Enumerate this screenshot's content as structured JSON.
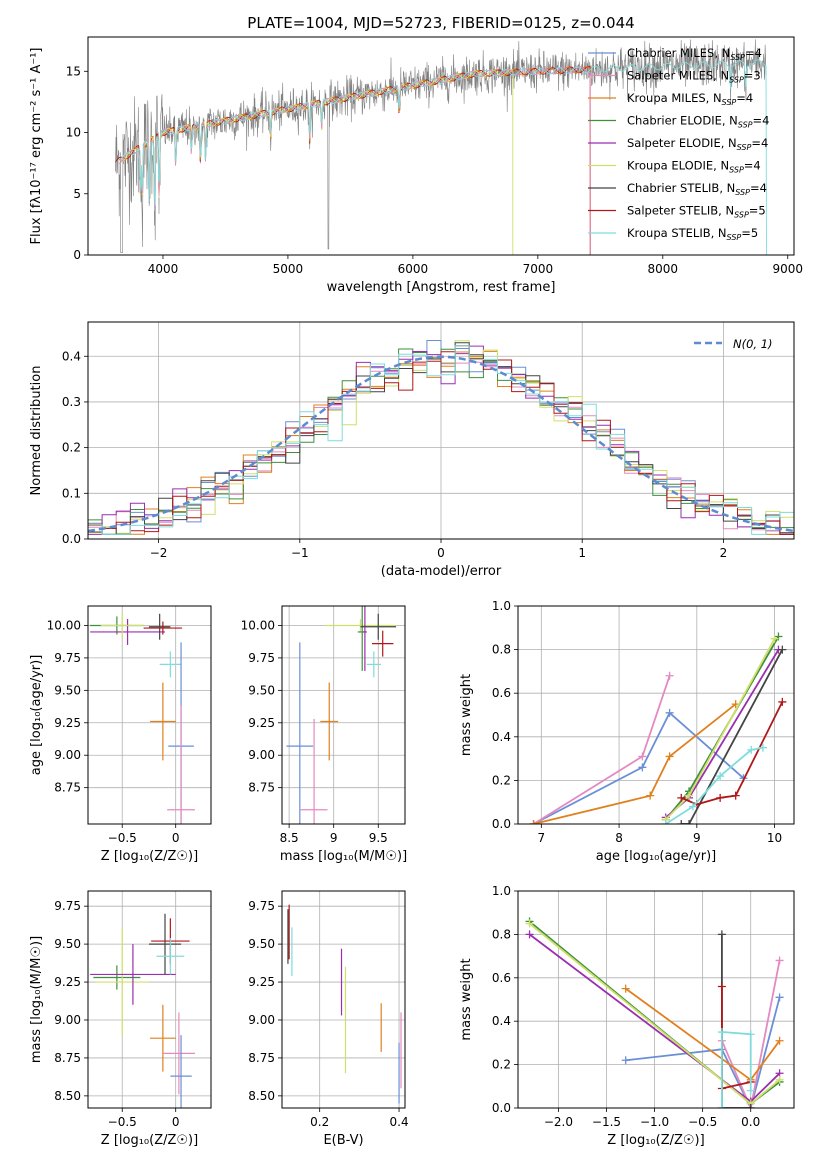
{
  "colors": {
    "Chabrier MILES": "#6a8fd6",
    "Salpeter MILES": "#e58ac0",
    "Kroupa MILES": "#e0801e",
    "Chabrier ELODIE": "#3f8f3f",
    "Salpeter ELODIE": "#9a2fb0",
    "Kroupa ELODIE": "#cfe06a",
    "Chabrier STELIB": "#444444",
    "Salpeter STELIB": "#b01818",
    "Kroupa STELIB": "#7fdcdc"
  },
  "chart_data": [
    {
      "id": "spectrum",
      "type": "line",
      "title": "PLATE=1004, MJD=52723, FIBERID=0125, z=0.044",
      "xlabel": "wavelength [Angstrom, rest frame]",
      "ylabel": "Flux [fλ10⁻¹⁷ erg cm⁻² s⁻¹ A⁻¹]",
      "xlim": [
        3400,
        9050
      ],
      "ylim": [
        0,
        17.8
      ],
      "xticks": [
        4000,
        5000,
        6000,
        7000,
        8000,
        9000
      ],
      "yticks": [
        0,
        5,
        10,
        15
      ],
      "grid": false,
      "legend_position": "top-right",
      "data_color": "#808080",
      "data_range": [
        3620,
        8830
      ],
      "legend": [
        {
          "name": "Chabrier MILES, N",
          "sub": "SSP",
          "val": "=4",
          "color": "#6a8fd6"
        },
        {
          "name": "Salpeter MILES, N",
          "sub": "SSP",
          "val": "=3",
          "color": "#e58ac0"
        },
        {
          "name": "Kroupa MILES, N",
          "sub": "SSP",
          "val": "=4",
          "color": "#e0801e"
        },
        {
          "name": "Chabrier ELODIE, N",
          "sub": "SSP",
          "val": "=4",
          "color": "#3f8f3f"
        },
        {
          "name": "Salpeter ELODIE, N",
          "sub": "SSP",
          "val": "=4",
          "color": "#9a2fb0"
        },
        {
          "name": "Kroupa ELODIE, N",
          "sub": "SSP",
          "val": "=4",
          "color": "#cfe06a"
        },
        {
          "name": "Chabrier STELIB, N",
          "sub": "SSP",
          "val": "=4",
          "color": "#444444"
        },
        {
          "name": "Salpeter STELIB, N",
          "sub": "SSP",
          "val": "=5",
          "color": "#b01818"
        },
        {
          "name": "Kroupa STELIB, N",
          "sub": "SSP",
          "val": "=5",
          "color": "#7fdcdc"
        }
      ],
      "models": [
        {
          "color": "#b01818",
          "range": [
            3620,
            7420
          ]
        },
        {
          "color": "#e0801e",
          "range": [
            3650,
            7420
          ]
        },
        {
          "color": "#cfe06a",
          "range": [
            3680,
            6800
          ]
        },
        {
          "color": "#e58ac0",
          "range": [
            3650,
            7420
          ]
        },
        {
          "color": "#7fdcdc",
          "range": [
            3660,
            8830
          ]
        }
      ]
    },
    {
      "id": "residuals",
      "type": "histogram",
      "xlabel": "(data-model)/error",
      "ylabel": "Normed distribution",
      "xlim": [
        -2.5,
        2.5
      ],
      "ylim": [
        0,
        0.475
      ],
      "xticks": [
        -2,
        -1,
        0,
        1,
        2
      ],
      "yticks": [
        0.0,
        0.1,
        0.2,
        0.3,
        0.4
      ],
      "grid": true,
      "legend_position": "top-right",
      "legend": [
        {
          "name": "N(0, 1)",
          "color": "#5b8bd0",
          "style": "dashed"
        }
      ],
      "bin_width": 0.1,
      "bin_start": -2.5,
      "gaussian": {
        "mean": 0,
        "sigma": 1
      }
    },
    {
      "id": "age-vs-Z",
      "type": "scatter-errorbar",
      "xlabel": "Z [log₁₀(Z/Z☉)]",
      "ylabel": "age  [log₁₀(age/yr)]",
      "xlim": [
        -0.82,
        0.33
      ],
      "ylim": [
        8.47,
        10.15
      ],
      "xticks": [
        -0.5,
        0.0
      ],
      "yticks": [
        8.75,
        9.0,
        9.25,
        9.5,
        9.75,
        10.0
      ],
      "grid": true,
      "points": [
        {
          "x": -0.55,
          "y": 10.0,
          "xerr": 0.25,
          "yerr": 0.07,
          "color": "#3f8f3f"
        },
        {
          "x": -0.45,
          "y": 9.95,
          "xerr": 0.35,
          "yerr": 0.1,
          "color": "#9a2fb0"
        },
        {
          "x": -0.5,
          "y": 10.0,
          "xerr": 0.2,
          "yerr": 0.1,
          "color": "#cfe06a"
        },
        {
          "x": -0.15,
          "y": 9.99,
          "xerr": 0.1,
          "yerr": 0.1,
          "color": "#444444"
        },
        {
          "x": -0.12,
          "y": 9.98,
          "xerr": 0.18,
          "yerr": 0.05,
          "color": "#b01818"
        },
        {
          "x": -0.05,
          "y": 9.7,
          "xerr": 0.1,
          "yerr": 0.1,
          "color": "#7fdcdc"
        },
        {
          "x": -0.12,
          "y": 9.26,
          "xerr": 0.12,
          "yerr": 0.3,
          "color": "#e0801e"
        },
        {
          "x": 0.05,
          "y": 9.07,
          "xerr": 0.12,
          "yerr": 0.8,
          "color": "#6a8fd6"
        },
        {
          "x": 0.05,
          "y": 8.58,
          "xerr": 0.13,
          "yerr": 0.8,
          "color": "#e58ac0"
        }
      ]
    },
    {
      "id": "age-vs-mass",
      "type": "scatter-errorbar",
      "xlabel": "mass [log₁₀(M/M☉)]",
      "ylabel": "",
      "xlim": [
        8.42,
        9.8
      ],
      "ylim": [
        8.47,
        10.15
      ],
      "xticks": [
        8.5,
        9.0,
        9.5
      ],
      "yticks": [
        8.75,
        9.0,
        9.25,
        9.5,
        9.75,
        10.0
      ],
      "grid": true,
      "points": [
        {
          "x": 9.3,
          "y": 10.0,
          "xerr": 0.4,
          "yerr": 0.05,
          "color": "#cfe06a"
        },
        {
          "x": 9.32,
          "y": 9.95,
          "xerr": 0.05,
          "yerr": 0.3,
          "color": "#3f8f3f"
        },
        {
          "x": 9.35,
          "y": 9.95,
          "xerr": 0.02,
          "yerr": 0.3,
          "color": "#9a2fb0"
        },
        {
          "x": 9.5,
          "y": 9.99,
          "xerr": 0.2,
          "yerr": 0.1,
          "color": "#444444"
        },
        {
          "x": 9.55,
          "y": 9.86,
          "xerr": 0.12,
          "yerr": 0.1,
          "color": "#b01818"
        },
        {
          "x": 9.45,
          "y": 9.7,
          "xerr": 0.08,
          "yerr": 0.1,
          "color": "#7fdcdc"
        },
        {
          "x": 8.95,
          "y": 9.26,
          "xerr": 0.1,
          "yerr": 0.3,
          "color": "#e0801e"
        },
        {
          "x": 8.62,
          "y": 9.07,
          "xerr": 0.15,
          "yerr": 0.8,
          "color": "#6a8fd6"
        },
        {
          "x": 8.78,
          "y": 8.58,
          "xerr": 0.15,
          "yerr": 0.7,
          "color": "#e58ac0"
        }
      ]
    },
    {
      "id": "mass-weight-vs-age",
      "type": "line",
      "xlabel": "age  [log₁₀(age/yr)]",
      "ylabel": "mass weight",
      "xlim": [
        6.7,
        10.25
      ],
      "ylim": [
        0,
        1.0
      ],
      "xticks": [
        7,
        8,
        9,
        10
      ],
      "yticks": [
        0.0,
        0.2,
        0.4,
        0.6,
        0.8,
        1.0
      ],
      "grid": true,
      "series": [
        {
          "color": "#6a8fd6",
          "points": [
            [
              6.9,
              0.0
            ],
            [
              8.3,
              0.26
            ],
            [
              8.65,
              0.51
            ],
            [
              9.6,
              0.21
            ]
          ]
        },
        {
          "color": "#e58ac0",
          "points": [
            [
              6.9,
              0.0
            ],
            [
              8.3,
              0.31
            ],
            [
              8.65,
              0.68
            ]
          ]
        },
        {
          "color": "#e0801e",
          "points": [
            [
              6.9,
              0.0
            ],
            [
              8.4,
              0.13
            ],
            [
              8.65,
              0.31
            ],
            [
              9.5,
              0.55
            ]
          ]
        },
        {
          "color": "#3f8f3f",
          "points": [
            [
              8.6,
              0.02
            ],
            [
              8.9,
              0.15
            ],
            [
              10.05,
              0.86
            ]
          ]
        },
        {
          "color": "#9a2fb0",
          "points": [
            [
              8.6,
              0.03
            ],
            [
              8.9,
              0.12
            ],
            [
              10.05,
              0.8
            ]
          ]
        },
        {
          "color": "#cfe06a",
          "points": [
            [
              8.6,
              0.02
            ],
            [
              8.9,
              0.13
            ],
            [
              10.0,
              0.85
            ]
          ]
        },
        {
          "color": "#444444",
          "points": [
            [
              8.8,
              0.0
            ],
            [
              8.9,
              0.0
            ],
            [
              10.1,
              0.8
            ]
          ]
        },
        {
          "color": "#b01818",
          "points": [
            [
              8.8,
              0.12
            ],
            [
              9.0,
              0.09
            ],
            [
              9.3,
              0.12
            ],
            [
              9.5,
              0.13
            ],
            [
              10.1,
              0.56
            ]
          ]
        },
        {
          "color": "#7fdcdc",
          "points": [
            [
              8.6,
              0.0
            ],
            [
              8.95,
              0.08
            ],
            [
              9.3,
              0.22
            ],
            [
              9.7,
              0.34
            ],
            [
              9.85,
              0.35
            ]
          ]
        }
      ]
    },
    {
      "id": "mass-vs-Z",
      "type": "scatter-errorbar",
      "xlabel": "Z [log₁₀(Z/Z☉)]",
      "ylabel": "mass [log₁₀(M/M☉)]",
      "xlim": [
        -0.82,
        0.33
      ],
      "ylim": [
        8.42,
        9.85
      ],
      "xticks": [
        -0.5,
        0.0
      ],
      "yticks": [
        8.5,
        8.75,
        9.0,
        9.25,
        9.5,
        9.75
      ],
      "grid": true,
      "points": [
        {
          "x": -0.55,
          "y": 9.28,
          "xerr": 0.22,
          "yerr": 0.08,
          "color": "#3f8f3f"
        },
        {
          "x": -0.5,
          "y": 9.25,
          "xerr": 0.25,
          "yerr": 0.35,
          "color": "#cfe06a"
        },
        {
          "x": -0.4,
          "y": 9.3,
          "xerr": 0.4,
          "yerr": 0.2,
          "color": "#9a2fb0"
        },
        {
          "x": -0.1,
          "y": 9.5,
          "xerr": 0.15,
          "yerr": 0.2,
          "color": "#444444"
        },
        {
          "x": -0.05,
          "y": 9.52,
          "xerr": 0.18,
          "yerr": 0.15,
          "color": "#b01818"
        },
        {
          "x": -0.05,
          "y": 9.42,
          "xerr": 0.13,
          "yerr": 0.12,
          "color": "#7fdcdc"
        },
        {
          "x": -0.12,
          "y": 8.88,
          "xerr": 0.12,
          "yerr": 0.22,
          "color": "#e0801e"
        },
        {
          "x": 0.03,
          "y": 8.78,
          "xerr": 0.15,
          "yerr": 0.27,
          "color": "#e58ac0"
        },
        {
          "x": 0.05,
          "y": 8.63,
          "xerr": 0.1,
          "yerr": 0.27,
          "color": "#6a8fd6"
        }
      ]
    },
    {
      "id": "mass-vs-EBV",
      "type": "scatter-errorbar",
      "xlabel": "E(B-V)",
      "ylabel": "",
      "xlim": [
        0.105,
        0.415
      ],
      "ylim": [
        8.42,
        9.85
      ],
      "xticks": [
        0.2,
        0.4
      ],
      "yticks": [
        8.5,
        8.75,
        9.0,
        9.25,
        9.5,
        9.75
      ],
      "grid": true,
      "points": [
        {
          "x": 0.12,
          "y": 9.55,
          "xerr": 0.0,
          "yerr": 0.18,
          "color": "#444444"
        },
        {
          "x": 0.123,
          "y": 9.58,
          "xerr": 0.0,
          "yerr": 0.18,
          "color": "#b01818"
        },
        {
          "x": 0.13,
          "y": 9.45,
          "xerr": 0.0,
          "yerr": 0.16,
          "color": "#7fdcdc"
        },
        {
          "x": 0.255,
          "y": 9.25,
          "xerr": 0.0,
          "yerr": 0.22,
          "color": "#9a2fb0"
        },
        {
          "x": 0.265,
          "y": 9.0,
          "xerr": 0.0,
          "yerr": 0.35,
          "color": "#cfe06a"
        },
        {
          "x": 0.355,
          "y": 8.95,
          "xerr": 0.0,
          "yerr": 0.16,
          "color": "#e0801e"
        },
        {
          "x": 0.405,
          "y": 8.8,
          "xerr": 0.0,
          "yerr": 0.25,
          "color": "#e58ac0"
        },
        {
          "x": 0.4,
          "y": 8.65,
          "xerr": 0.0,
          "yerr": 0.2,
          "color": "#6a8fd6"
        }
      ]
    },
    {
      "id": "mass-weight-vs-Z",
      "type": "line",
      "xlabel": "Z [log₁₀(Z/Z☉)]",
      "ylabel": "mass weight",
      "xlim": [
        -2.42,
        0.45
      ],
      "ylim": [
        0,
        1.0
      ],
      "xticks": [
        -2.0,
        -1.5,
        -1.0,
        -0.5,
        0.0
      ],
      "yticks": [
        0.0,
        0.2,
        0.4,
        0.6,
        0.8,
        1.0
      ],
      "grid": true,
      "series": [
        {
          "color": "#6a8fd6",
          "points": [
            [
              -1.3,
              0.22
            ],
            [
              -0.3,
              0.27
            ],
            [
              0.0,
              0.0
            ],
            [
              0.3,
              0.51
            ]
          ]
        },
        {
          "color": "#e58ac0",
          "points": [
            [
              -0.3,
              0.31
            ],
            [
              0.0,
              0.0
            ],
            [
              0.3,
              0.68
            ]
          ]
        },
        {
          "color": "#e0801e",
          "points": [
            [
              -1.3,
              0.55
            ],
            [
              0.0,
              0.13
            ],
            [
              0.3,
              0.31
            ]
          ]
        },
        {
          "color": "#3f8f3f",
          "points": [
            [
              -2.3,
              0.86
            ],
            [
              0.0,
              0.02
            ],
            [
              0.3,
              0.12
            ]
          ]
        },
        {
          "color": "#9a2fb0",
          "points": [
            [
              -2.3,
              0.8
            ],
            [
              0.0,
              0.03
            ],
            [
              0.3,
              0.16
            ]
          ]
        },
        {
          "color": "#cfe06a",
          "points": [
            [
              -2.3,
              0.85
            ],
            [
              0.0,
              0.02
            ],
            [
              0.3,
              0.13
            ]
          ]
        },
        {
          "color": "#444444",
          "points": [
            [
              -0.3,
              0.8
            ],
            [
              -0.3,
              0.0
            ],
            [
              0.0,
              0.0
            ]
          ]
        },
        {
          "color": "#b01818",
          "points": [
            [
              -0.3,
              0.56
            ],
            [
              -0.3,
              0.09
            ],
            [
              0.0,
              0.12
            ]
          ]
        },
        {
          "color": "#7fdcdc",
          "points": [
            [
              -0.3,
              0.0
            ],
            [
              -0.3,
              0.35
            ],
            [
              0.0,
              0.34
            ],
            [
              0.0,
              0.08
            ]
          ]
        }
      ]
    }
  ]
}
